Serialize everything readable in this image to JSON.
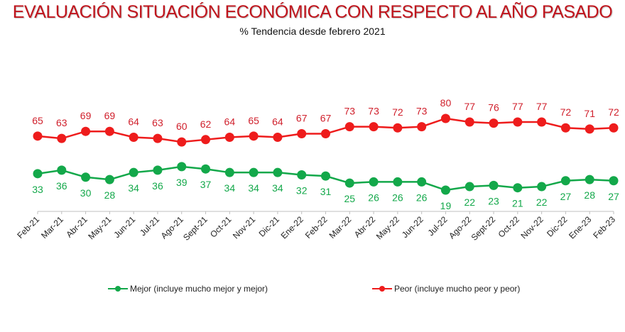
{
  "chart_data": {
    "type": "line",
    "title": "EVALUACIÓN SITUACIÓN ECONÓMICA CON RESPECTO AL AÑO PASADO",
    "subtitle": "% Tendencia desde febrero 2021",
    "xlabel": "",
    "ylabel": "",
    "grid": false,
    "legend_position": "bottom",
    "ylim": [
      0,
      100
    ],
    "categories": [
      "Feb-21",
      "Mar-21",
      "Abr-21",
      "May-21",
      "Jun-21",
      "Jul-21",
      "Ago-21",
      "Sept-21",
      "Oct-21",
      "Nov-21",
      "Dic-21",
      "Ene-22",
      "Feb-22",
      "Mar-22",
      "Abr-22",
      "May-22",
      "Jun-22",
      "Jul-22",
      "Ago-22",
      "Sept-22",
      "Oct-22",
      "Nov-22",
      "Dic-22",
      "Ene-23",
      "Feb-23"
    ],
    "series": [
      {
        "name": "Mejor (incluye mucho mejor y mejor)",
        "color": "#13a84a",
        "label_position": "below",
        "values": [
          33,
          36,
          30,
          28,
          34,
          36,
          39,
          37,
          34,
          34,
          34,
          32,
          31,
          25,
          26,
          26,
          26,
          19,
          22,
          23,
          21,
          22,
          27,
          28,
          27
        ]
      },
      {
        "name": "Peor (incluye mucho peor y peor)",
        "color": "#ee1c1c",
        "label_color": "#d01f2b",
        "label_position": "above",
        "values": [
          65,
          63,
          69,
          69,
          64,
          63,
          60,
          62,
          64,
          65,
          64,
          67,
          67,
          73,
          73,
          72,
          73,
          80,
          77,
          76,
          77,
          77,
          72,
          71,
          72
        ]
      }
    ]
  }
}
